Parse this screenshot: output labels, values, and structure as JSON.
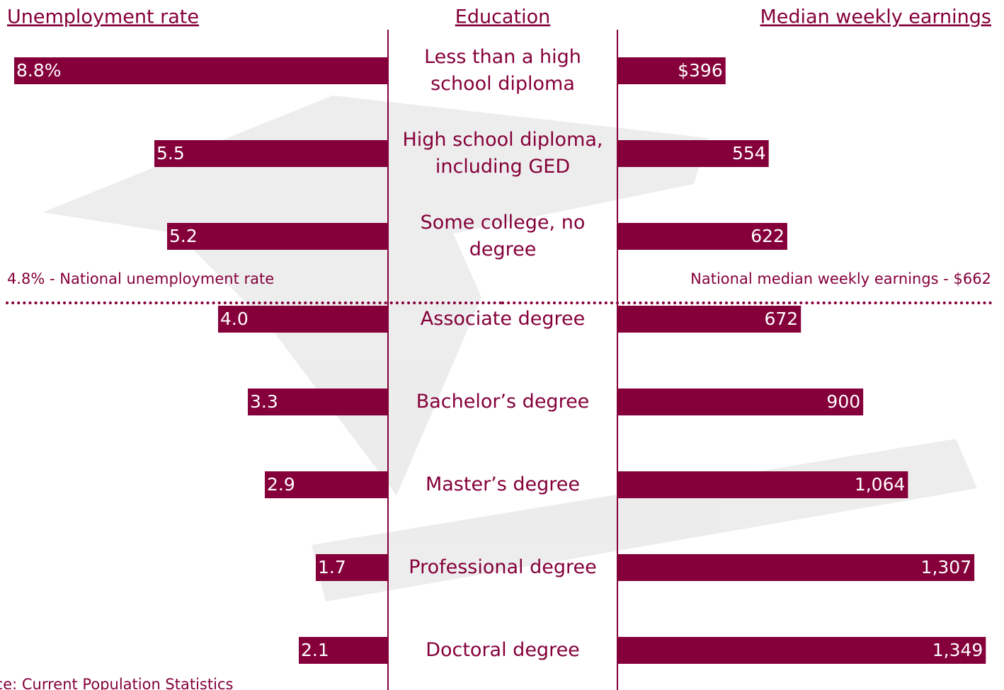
{
  "chart_data": {
    "type": "butterfly-bar",
    "category_title": "Education",
    "categories": [
      "Less than a high school diploma",
      "High school diploma, including GED",
      "Some college, no degree",
      "Associate degree",
      "Bachelor’s degree",
      "Master’s degree",
      "Professional degree",
      "Doctoral degree"
    ],
    "series": [
      {
        "name": "Unemployment rate",
        "color": "#85003a",
        "side": "left",
        "values": [
          8.8,
          5.5,
          5.2,
          4.0,
          3.3,
          2.9,
          1.7,
          2.1
        ],
        "value_labels": [
          "8.8%",
          "5.5",
          "5.2",
          "4.0",
          "3.3",
          "2.9",
          "1.7",
          "2.1"
        ],
        "xlim": [
          0,
          9
        ],
        "reference": {
          "value": 4.8,
          "label": "4.8% - National unemployment rate"
        }
      },
      {
        "name": "Median weekly earnings",
        "color": "#85003a",
        "side": "right",
        "values": [
          396,
          554,
          622,
          672,
          900,
          1064,
          1307,
          1349
        ],
        "value_labels": [
          "$396",
          "554",
          "622",
          "672",
          "900",
          "1,064",
          "1,307",
          "1,349"
        ],
        "xlim": [
          0,
          1400
        ],
        "reference": {
          "value": 662,
          "label": "National median weekly earnings - $662"
        }
      }
    ],
    "source": "Source: Current Population Statistics"
  }
}
